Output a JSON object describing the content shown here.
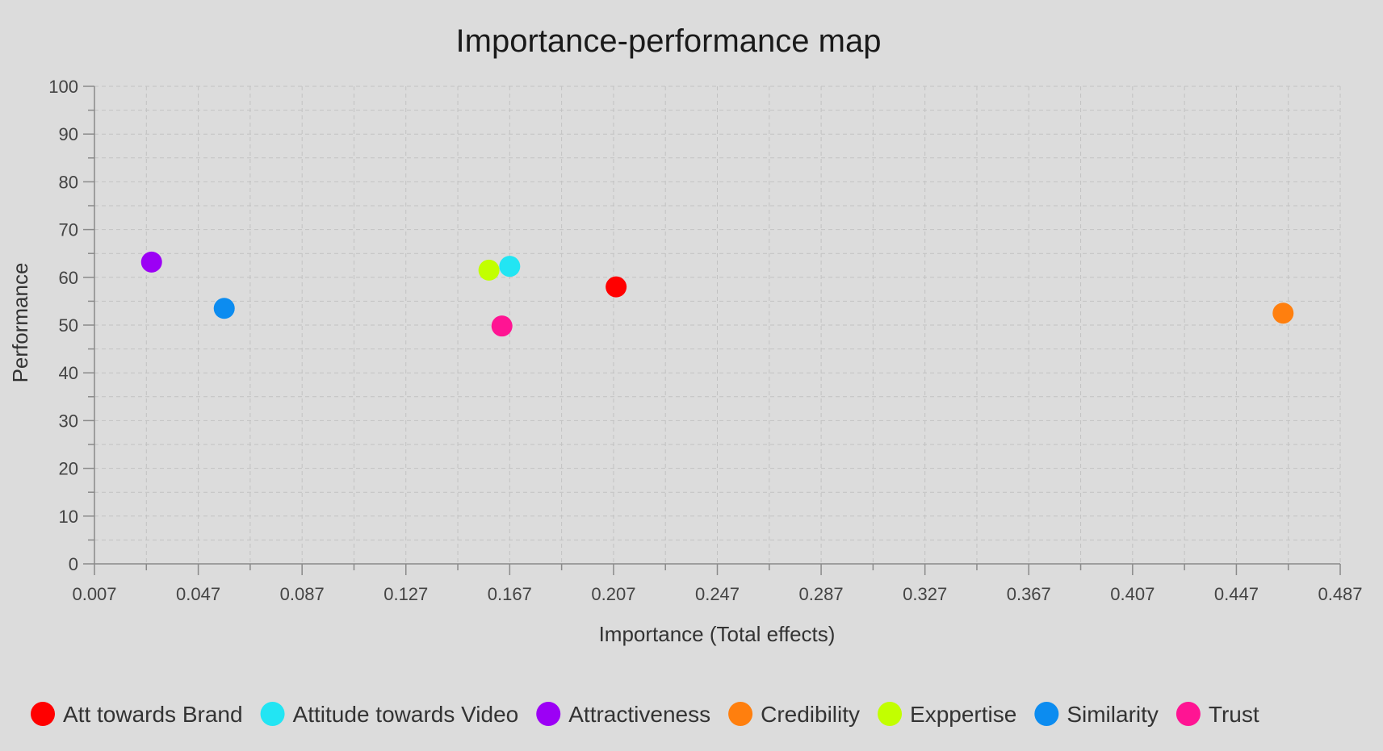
{
  "chart_data": {
    "type": "scatter",
    "title": "Importance-performance map",
    "xlabel": "Importance (Total effects)",
    "ylabel": "Performance",
    "xlim": [
      0.007,
      0.487
    ],
    "ylim": [
      0,
      100
    ],
    "xticks": [
      "0.007",
      "0.047",
      "0.087",
      "0.127",
      "0.167",
      "0.207",
      "0.247",
      "0.287",
      "0.327",
      "0.367",
      "0.407",
      "0.447",
      "0.487"
    ],
    "yticks": [
      "0",
      "10",
      "20",
      "30",
      "40",
      "50",
      "60",
      "70",
      "80",
      "90",
      "100"
    ],
    "grid": true,
    "legend_position": "bottom",
    "series": [
      {
        "name": "Att towards Brand",
        "color": "#ff0000",
        "x": 0.208,
        "y": 58.0
      },
      {
        "name": "Attitude towards Video",
        "color": "#22e5f3",
        "x": 0.167,
        "y": 62.3
      },
      {
        "name": "Attractiveness",
        "color": "#9c00f5",
        "x": 0.029,
        "y": 63.2
      },
      {
        "name": "Credibility",
        "color": "#ff7f0e",
        "x": 0.465,
        "y": 52.5
      },
      {
        "name": "Exppertise",
        "color": "#c2ff00",
        "x": 0.159,
        "y": 61.5
      },
      {
        "name": "Similarity",
        "color": "#0c8cf0",
        "x": 0.057,
        "y": 53.5
      },
      {
        "name": "Trust",
        "color": "#ff1493",
        "x": 0.164,
        "y": 49.8
      }
    ]
  }
}
